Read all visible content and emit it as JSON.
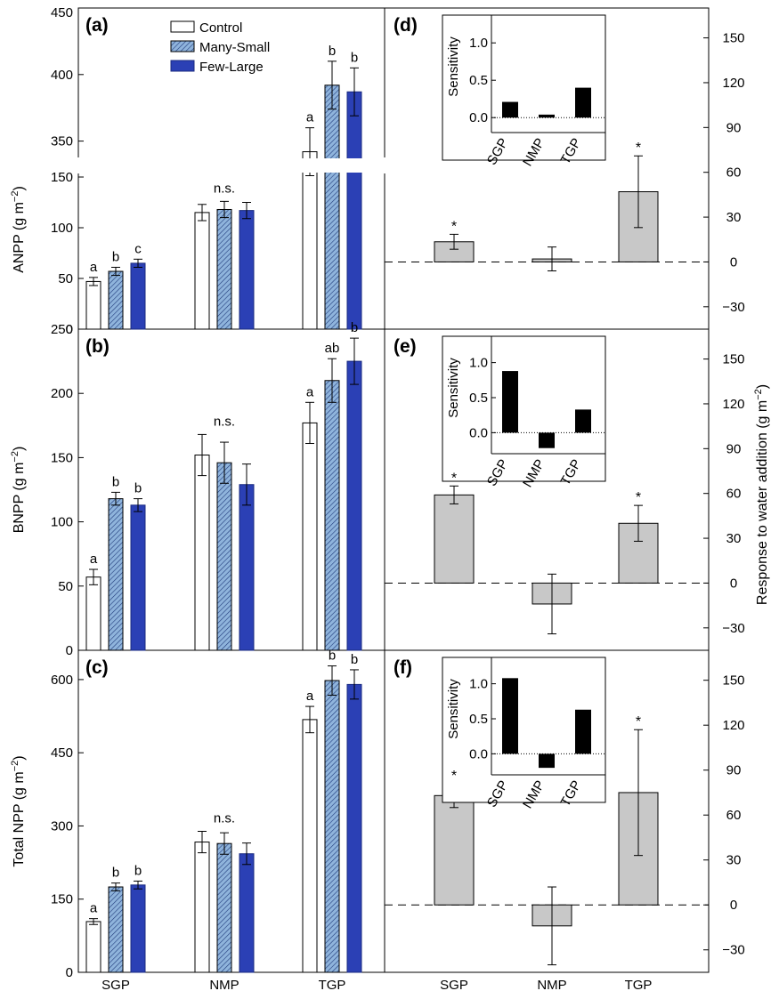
{
  "colors": {
    "control": "#ffffff",
    "many_small": "#8fb4dc",
    "few_large": "#2b40b5",
    "response": "#c8c8c8",
    "sensitivity": "#000000"
  },
  "legend": [
    "Control",
    "Many-Small",
    "Few-Large"
  ],
  "chart_data": [
    {
      "panel": "(a)",
      "type": "bar",
      "ylabel": "ANPP (g m⁻²)",
      "categories": [
        "SGP",
        "NMP",
        "TGP"
      ],
      "ylim": [
        0,
        450
      ],
      "axis_break": [
        155,
        325
      ],
      "yticks_lower": [
        0,
        50,
        100,
        150
      ],
      "yticks_upper": [
        350,
        400,
        450
      ],
      "series": [
        {
          "name": "Control",
          "values": [
            47,
            115,
            342
          ],
          "errors": [
            4,
            8,
            18
          ]
        },
        {
          "name": "Many-Small",
          "values": [
            57,
            118,
            392
          ],
          "errors": [
            4,
            8,
            18
          ]
        },
        {
          "name": "Few-Large",
          "values": [
            65,
            117,
            387
          ],
          "errors": [
            4,
            8,
            18
          ]
        }
      ],
      "letters": [
        [
          "a",
          "b",
          "c"
        ],
        [
          "n.s."
        ],
        [
          "a",
          "b",
          "b"
        ]
      ]
    },
    {
      "panel": "(b)",
      "type": "bar",
      "ylabel": "BNPP (g m⁻²)",
      "categories": [
        "SGP",
        "NMP",
        "TGP"
      ],
      "ylim": [
        0,
        250
      ],
      "yticks": [
        0,
        50,
        100,
        150,
        200,
        250
      ],
      "series": [
        {
          "name": "Control",
          "values": [
            57,
            152,
            177
          ],
          "errors": [
            6,
            16,
            16
          ]
        },
        {
          "name": "Many-Small",
          "values": [
            118,
            146,
            210
          ],
          "errors": [
            5,
            16,
            17
          ]
        },
        {
          "name": "Few-Large",
          "values": [
            113,
            129,
            225
          ],
          "errors": [
            5,
            16,
            18
          ]
        }
      ],
      "letters": [
        [
          "a",
          "b",
          "b"
        ],
        [
          "n.s."
        ],
        [
          "a",
          "ab",
          "b"
        ]
      ]
    },
    {
      "panel": "(c)",
      "type": "bar",
      "ylabel": "Total NPP (g m⁻²)",
      "categories": [
        "SGP",
        "NMP",
        "TGP"
      ],
      "ylim": [
        0,
        660
      ],
      "yticks": [
        0,
        150,
        300,
        450,
        600
      ],
      "series": [
        {
          "name": "Control",
          "values": [
            104,
            267,
            518
          ],
          "errors": [
            6,
            22,
            27
          ]
        },
        {
          "name": "Many-Small",
          "values": [
            175,
            264,
            598
          ],
          "errors": [
            8,
            22,
            30
          ]
        },
        {
          "name": "Few-Large",
          "values": [
            179,
            243,
            590
          ],
          "errors": [
            8,
            22,
            30
          ]
        }
      ],
      "letters": [
        [
          "a",
          "b",
          "b"
        ],
        [
          "n.s."
        ],
        [
          "a",
          "b",
          "b"
        ]
      ]
    },
    {
      "panel": "(d)",
      "type": "bar",
      "ylabel": "Response to water addition (g m⁻²)",
      "categories": [
        "SGP",
        "NMP",
        "TGP"
      ],
      "ylim": [
        -45,
        170
      ],
      "yticks": [
        -30,
        0,
        30,
        60,
        90,
        120,
        150
      ],
      "values": [
        13.5,
        2,
        47
      ],
      "errors": [
        5,
        8,
        24
      ],
      "significant": [
        true,
        false,
        true
      ],
      "inset": {
        "ylabel": "Sensitivity",
        "categories": [
          "SGP",
          "NMP",
          "TGP"
        ],
        "values": [
          0.21,
          0.04,
          0.4
        ],
        "ylim": [
          -0.2,
          1.3
        ],
        "yticks": [
          "0.0",
          "0.5",
          "1.0"
        ]
      }
    },
    {
      "panel": "(e)",
      "type": "bar",
      "ylabel": "Response to water addition (g m⁻²)",
      "categories": [
        "SGP",
        "NMP",
        "TGP"
      ],
      "ylim": [
        -45,
        170
      ],
      "yticks": [
        -30,
        0,
        30,
        60,
        90,
        120,
        150
      ],
      "values": [
        59,
        -14,
        40
      ],
      "errors": [
        6,
        20,
        12
      ],
      "significant": [
        true,
        false,
        true
      ],
      "inset": {
        "ylabel": "Sensitivity",
        "categories": [
          "SGP",
          "NMP",
          "TGP"
        ],
        "values": [
          0.88,
          -0.22,
          0.33
        ],
        "ylim": [
          -0.3,
          1.3
        ],
        "yticks": [
          "0.0",
          "0.5",
          "1.0"
        ]
      }
    },
    {
      "panel": "(f)",
      "type": "bar",
      "ylabel": "Response to water addition (g m⁻²)",
      "categories": [
        "SGP",
        "NMP",
        "TGP"
      ],
      "ylim": [
        -45,
        170
      ],
      "yticks": [
        -30,
        0,
        30,
        60,
        90,
        120,
        150
      ],
      "values": [
        73,
        -14,
        75
      ],
      "errors": [
        8,
        26,
        42
      ],
      "significant": [
        true,
        false,
        true
      ],
      "inset": {
        "ylabel": "Sensitivity",
        "categories": [
          "SGP",
          "NMP",
          "TGP"
        ],
        "values": [
          1.08,
          -0.2,
          0.63
        ],
        "ylim": [
          -0.3,
          1.3
        ],
        "yticks": [
          "0.0",
          "0.5",
          "1.0"
        ]
      }
    }
  ]
}
